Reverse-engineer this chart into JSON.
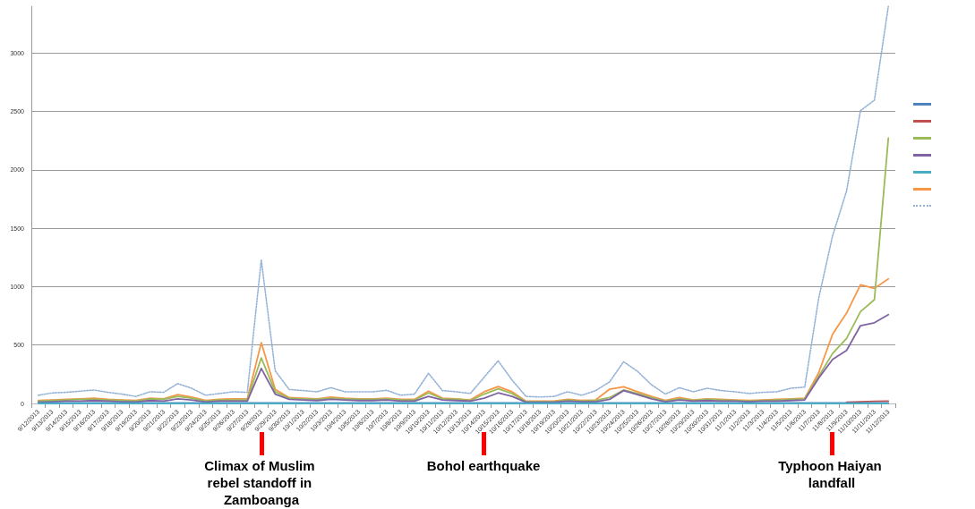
{
  "chart_data": {
    "type": "line",
    "categories": [
      "9/12/2013",
      "9/13/2013",
      "9/14/2013",
      "9/15/2013",
      "9/16/2013",
      "9/17/2013",
      "9/18/2013",
      "9/19/2013",
      "9/20/2013",
      "9/21/2013",
      "9/22/2013",
      "9/23/2013",
      "9/24/2013",
      "9/25/2013",
      "9/26/2013",
      "9/27/2013",
      "9/28/2013",
      "9/29/2013",
      "9/30/2013",
      "10/1/2013",
      "10/2/2013",
      "10/3/2013",
      "10/4/2013",
      "10/5/2013",
      "10/6/2013",
      "10/7/2013",
      "10/8/2013",
      "10/9/2013",
      "10/10/2013",
      "10/11/2013",
      "10/12/2013",
      "10/13/2013",
      "10/14/2013",
      "10/15/2013",
      "10/16/2013",
      "10/17/2013",
      "10/18/2013",
      "10/19/2013",
      "10/20/2013",
      "10/21/2013",
      "10/22/2013",
      "10/23/2013",
      "10/24/2013",
      "10/25/2013",
      "10/26/2013",
      "10/27/2013",
      "10/28/2013",
      "10/29/2013",
      "10/30/2013",
      "10/31/2013",
      "11/1/2013",
      "11/2/2013",
      "11/3/2013",
      "11/4/2013",
      "11/5/2013",
      "11/6/2013",
      "11/7/2013",
      "11/8/2013",
      "11/9/2013",
      "11/10/2013",
      "11/11/2013",
      "11/12/2013"
    ],
    "ylim": [
      0,
      3400
    ],
    "yticks": [
      0,
      500,
      1000,
      1500,
      2000,
      2500,
      3000
    ],
    "grid": "y",
    "marker": "none",
    "series": [
      {
        "color": "#4f81bd",
        "values": [
          5,
          5,
          5,
          5,
          5,
          5,
          5,
          5,
          5,
          5,
          5,
          5,
          5,
          5,
          5,
          5,
          5,
          5,
          5,
          5,
          5,
          5,
          5,
          5,
          5,
          5,
          5,
          5,
          5,
          5,
          5,
          5,
          5,
          5,
          5,
          5,
          5,
          5,
          5,
          5,
          5,
          5,
          5,
          5,
          5,
          5,
          5,
          5,
          5,
          5,
          5,
          5,
          5,
          5,
          5,
          5,
          5,
          5,
          5,
          5,
          5,
          5
        ]
      },
      {
        "color": "#c0504d",
        "values": [
          null,
          null,
          null,
          null,
          null,
          null,
          null,
          null,
          null,
          null,
          null,
          null,
          null,
          null,
          null,
          null,
          null,
          null,
          null,
          null,
          null,
          null,
          null,
          null,
          null,
          null,
          null,
          null,
          null,
          null,
          null,
          null,
          null,
          null,
          null,
          null,
          null,
          null,
          null,
          null,
          null,
          null,
          null,
          null,
          null,
          null,
          null,
          null,
          null,
          null,
          null,
          null,
          null,
          null,
          null,
          null,
          null,
          null,
          10,
          15,
          18,
          20
        ]
      },
      {
        "color": "#9bbb59",
        "values": [
          20,
          25,
          30,
          35,
          35,
          30,
          25,
          20,
          40,
          35,
          60,
          45,
          20,
          30,
          30,
          30,
          390,
          100,
          45,
          40,
          35,
          45,
          40,
          35,
          35,
          40,
          30,
          30,
          90,
          40,
          35,
          25,
          80,
          125,
          85,
          15,
          15,
          15,
          30,
          20,
          25,
          50,
          115,
          85,
          50,
          20,
          40,
          25,
          35,
          30,
          25,
          20,
          25,
          30,
          35,
          40,
          232,
          428,
          556,
          786,
          888,
          2272
        ]
      },
      {
        "color": "#8064a2",
        "values": [
          10,
          15,
          20,
          20,
          25,
          20,
          15,
          12,
          25,
          20,
          40,
          30,
          12,
          20,
          20,
          20,
          300,
          80,
          35,
          30,
          25,
          35,
          30,
          25,
          25,
          30,
          20,
          20,
          60,
          30,
          25,
          20,
          45,
          90,
          60,
          10,
          10,
          10,
          20,
          15,
          15,
          35,
          110,
          75,
          40,
          15,
          30,
          20,
          25,
          20,
          20,
          15,
          20,
          20,
          25,
          30,
          217,
          377,
          454,
          666,
          691,
          760
        ]
      },
      {
        "color": "#4bacc6",
        "values": [
          0,
          0,
          0,
          0,
          0,
          0,
          0,
          0,
          0,
          0,
          0,
          0,
          0,
          0,
          0,
          0,
          0,
          0,
          0,
          0,
          0,
          0,
          0,
          0,
          0,
          0,
          0,
          0,
          0,
          0,
          0,
          0,
          0,
          0,
          0,
          0,
          0,
          0,
          0,
          0,
          0,
          0,
          0,
          0,
          0,
          0,
          0,
          0,
          0,
          0,
          0,
          0,
          0,
          0,
          0,
          0,
          0,
          0,
          0,
          0,
          0,
          0
        ]
      },
      {
        "color": "#f79646",
        "values": [
          25,
          30,
          35,
          40,
          45,
          35,
          30,
          25,
          45,
          40,
          75,
          55,
          25,
          35,
          40,
          40,
          520,
          120,
          50,
          45,
          40,
          55,
          45,
          40,
          40,
          45,
          35,
          35,
          105,
          45,
          40,
          30,
          100,
          145,
          100,
          20,
          20,
          20,
          35,
          25,
          30,
          122,
          143,
          100,
          60,
          25,
          50,
          30,
          40,
          35,
          30,
          25,
          30,
          35,
          40,
          45,
          262,
          594,
          773,
          1015,
          985,
          1066
        ]
      },
      {
        "color": "#95b3d7",
        "line_style": "dotted",
        "values": [
          70,
          90,
          95,
          105,
          115,
          95,
          80,
          60,
          100,
          95,
          170,
          130,
          70,
          85,
          100,
          95,
          1230,
          280,
          120,
          110,
          100,
          135,
          100,
          100,
          100,
          112,
          70,
          80,
          258,
          110,
          100,
          85,
          225,
          365,
          200,
          60,
          55,
          60,
          100,
          70,
          110,
          185,
          357,
          275,
          160,
          80,
          135,
          100,
          130,
          110,
          100,
          85,
          95,
          100,
          130,
          140,
          900,
          1436,
          1818,
          2507,
          2596,
          3400
        ]
      }
    ],
    "annotations": [
      "Climax of Muslim rebel standoff in Zamboanga",
      "Bohol earthquake",
      "Typhoon Haiyan landfall"
    ]
  }
}
